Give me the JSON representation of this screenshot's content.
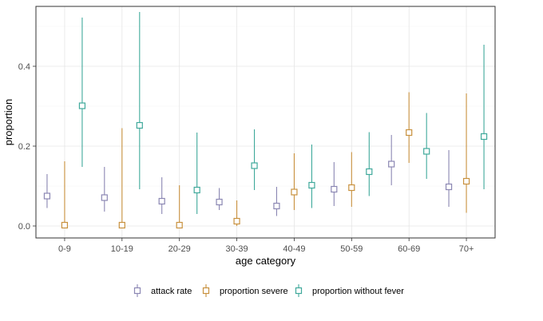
{
  "chart_data": {
    "type": "scatter",
    "subtype": "point-range",
    "title": "",
    "xlabel": "age category",
    "ylabel": "proportion",
    "ylim": [
      -0.03,
      0.55
    ],
    "yticks": [
      0.0,
      0.2,
      0.4
    ],
    "ytick_labels": [
      "0.0",
      "0.2",
      "0.4"
    ],
    "grid": true,
    "legend_position": "bottom",
    "categories": [
      "0-9",
      "10-19",
      "20-29",
      "30-39",
      "40-49",
      "50-59",
      "60-69",
      "70+"
    ],
    "series": [
      {
        "name": "attack rate",
        "color": "#8B87B3",
        "values": [
          0.075,
          0.071,
          0.062,
          0.06,
          0.05,
          0.092,
          0.155,
          0.098
        ],
        "lower": [
          0.045,
          0.036,
          0.03,
          0.04,
          0.025,
          0.05,
          0.102,
          0.048
        ],
        "upper": [
          0.13,
          0.148,
          0.122,
          0.095,
          0.098,
          0.16,
          0.228,
          0.19
        ]
      },
      {
        "name": "proportion severe",
        "color": "#C8913E",
        "values": [
          0.002,
          0.002,
          0.002,
          0.012,
          0.085,
          0.096,
          0.234,
          0.112
        ],
        "lower": [
          0.0,
          0.0,
          0.0,
          0.0,
          0.04,
          0.048,
          0.158,
          0.033
        ],
        "upper": [
          0.162,
          0.245,
          0.102,
          0.064,
          0.182,
          0.185,
          0.335,
          0.332
        ]
      },
      {
        "name": "proportion without fever",
        "color": "#3FA99B",
        "values": [
          0.301,
          0.252,
          0.09,
          0.151,
          0.102,
          0.136,
          0.187,
          0.224
        ],
        "lower": [
          0.148,
          0.092,
          0.03,
          0.09,
          0.045,
          0.075,
          0.118,
          0.092
        ],
        "upper": [
          0.522,
          0.536,
          0.234,
          0.242,
          0.204,
          0.235,
          0.283,
          0.454
        ]
      }
    ]
  }
}
